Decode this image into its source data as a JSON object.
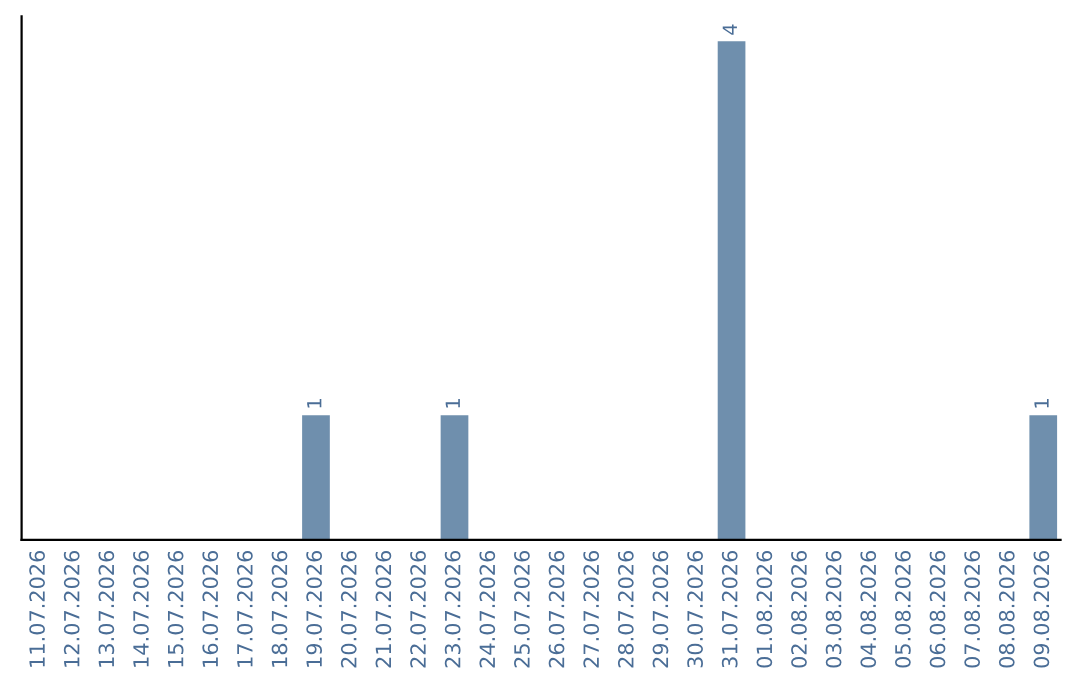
{
  "chart_data": {
    "type": "bar",
    "categories": [
      "11.07.2026",
      "12.07.2026",
      "13.07.2026",
      "14.07.2026",
      "15.07.2026",
      "16.07.2026",
      "17.07.2026",
      "18.07.2026",
      "19.07.2026",
      "20.07.2026",
      "21.07.2026",
      "22.07.2026",
      "23.07.2026",
      "24.07.2026",
      "25.07.2026",
      "26.07.2026",
      "27.07.2026",
      "28.07.2026",
      "29.07.2026",
      "30.07.2026",
      "31.07.2026",
      "01.08.2026",
      "02.08.2026",
      "03.08.2026",
      "04.08.2026",
      "05.08.2026",
      "06.08.2026",
      "07.08.2026",
      "08.08.2026",
      "09.08.2026"
    ],
    "values": [
      0,
      0,
      0,
      0,
      0,
      0,
      0,
      0,
      1,
      0,
      0,
      0,
      1,
      0,
      0,
      0,
      0,
      0,
      0,
      0,
      4,
      0,
      0,
      0,
      0,
      0,
      0,
      0,
      0,
      1
    ],
    "value_labels": [
      null,
      null,
      null,
      null,
      null,
      null,
      null,
      null,
      "1",
      null,
      null,
      null,
      "1",
      null,
      null,
      null,
      null,
      null,
      null,
      null,
      "4",
      null,
      null,
      null,
      null,
      null,
      null,
      null,
      null,
      "1"
    ],
    "color": "#6f8fad",
    "ylim": [
      0,
      4.2
    ],
    "tick_labels": "x",
    "grid": false,
    "legend": false
  }
}
